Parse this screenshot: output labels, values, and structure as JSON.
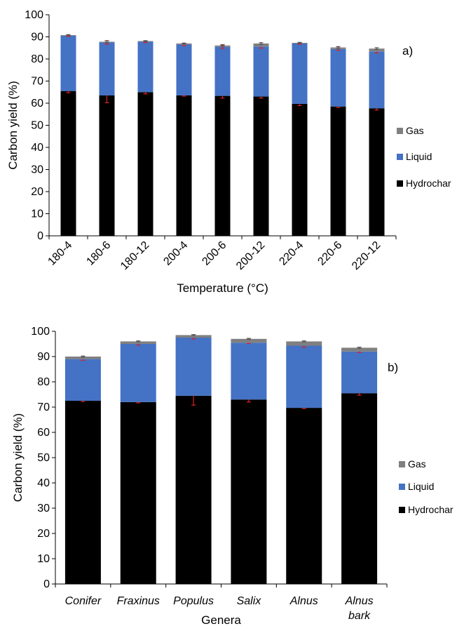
{
  "chart_data": [
    {
      "type": "bar",
      "stacked": true,
      "panel_label": "a)",
      "xlabel": "Temperature (°C)",
      "ylabel": "Carbon yield (%)",
      "ylim": [
        0,
        100
      ],
      "yticks": [
        0,
        10,
        20,
        30,
        40,
        50,
        60,
        70,
        80,
        90,
        100
      ],
      "categories": [
        "180-4",
        "180-6",
        "180-12",
        "200-4",
        "200-6",
        "200-12",
        "220-4",
        "220-6",
        "220-12"
      ],
      "series": [
        {
          "name": "Hydrochar",
          "color": "#000000",
          "values": [
            65.5,
            63.5,
            65.0,
            63.5,
            63.3,
            63.0,
            59.7,
            58.5,
            57.7
          ]
        },
        {
          "name": "Liquid",
          "color": "#4472c4",
          "values": [
            25.0,
            24.0,
            22.8,
            23.0,
            22.2,
            22.6,
            27.3,
            26.0,
            25.7
          ]
        },
        {
          "name": "Gas",
          "color": "#808080",
          "values": [
            0.3,
            0.3,
            0.3,
            0.5,
            0.6,
            1.4,
            0.3,
            0.7,
            1.3
          ]
        }
      ],
      "error_bars": {
        "Hydrochar": [
          0.8,
          3.3,
          0.8,
          0.3,
          1.0,
          0.7,
          0.8,
          0.5,
          0.8
        ],
        "Liquid": [
          0.3,
          0.8,
          0.4,
          0.4,
          0.7,
          0.7,
          0.4,
          0.6,
          0.7
        ],
        "Gas": [
          0.2,
          0.4,
          0.2,
          0.2,
          0.4,
          0.4,
          0.2,
          0.4,
          0.4
        ]
      },
      "legend": [
        "Gas",
        "Liquid",
        "Hydrochar"
      ],
      "grid": false
    },
    {
      "type": "bar",
      "stacked": true,
      "panel_label": "b)",
      "xlabel": "Genera",
      "ylabel": "Carbon yield (%)",
      "ylim": [
        0,
        100
      ],
      "yticks": [
        0,
        10,
        20,
        30,
        40,
        50,
        60,
        70,
        80,
        90,
        100
      ],
      "categories": [
        "Conifer",
        "Fraxinus",
        "Populus",
        "Salix",
        "Alnus",
        "Alnus bark"
      ],
      "series": [
        {
          "name": "Hydrochar",
          "color": "#000000",
          "values": [
            72.5,
            72.0,
            74.5,
            73.0,
            69.7,
            75.5
          ]
        },
        {
          "name": "Liquid",
          "color": "#4472c4",
          "values": [
            16.5,
            23.0,
            23.0,
            22.5,
            24.6,
            16.5
          ]
        },
        {
          "name": "Gas",
          "color": "#808080",
          "values": [
            1.0,
            1.0,
            1.0,
            1.5,
            1.7,
            1.5
          ]
        }
      ],
      "error_bars": {
        "Hydrochar": [
          0.3,
          0.3,
          3.7,
          1.0,
          0.3,
          0.8
        ],
        "Liquid": [
          0.5,
          0.5,
          0.5,
          0.3,
          0.6,
          0.4
        ],
        "Gas": [
          0.2,
          0.2,
          0.2,
          0.2,
          0.2,
          0.2
        ]
      },
      "legend": [
        "Gas",
        "Liquid",
        "Hydrochar"
      ],
      "grid": false
    }
  ]
}
